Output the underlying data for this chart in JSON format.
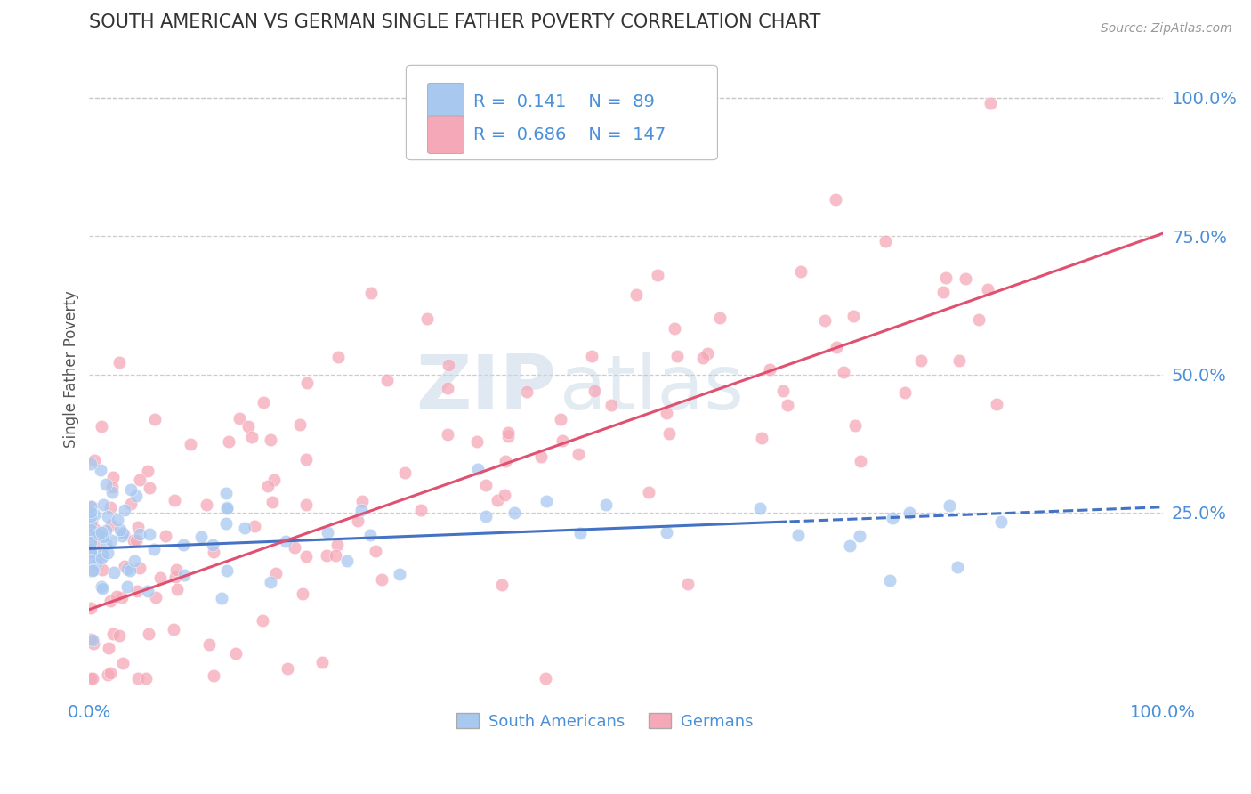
{
  "title": "SOUTH AMERICAN VS GERMAN SINGLE FATHER POVERTY CORRELATION CHART",
  "source": "Source: ZipAtlas.com",
  "ylabel": "Single Father Poverty",
  "xlim": [
    0,
    1
  ],
  "ylim": [
    -0.08,
    1.1
  ],
  "yticks": [
    0.25,
    0.5,
    0.75,
    1.0
  ],
  "ytick_labels": [
    "25.0%",
    "50.0%",
    "75.0%",
    "100.0%"
  ],
  "xtick_labels": [
    "0.0%",
    "100.0%"
  ],
  "blue_R": 0.141,
  "blue_N": 89,
  "pink_R": 0.686,
  "pink_N": 147,
  "blue_color": "#a8c8f0",
  "pink_color": "#f5a8b8",
  "blue_line_color": "#4472c4",
  "pink_line_color": "#e05070",
  "blue_line_intercept": 0.185,
  "blue_line_slope": 0.075,
  "pink_line_intercept": 0.075,
  "pink_line_slope": 0.68,
  "watermark_zip": "ZIP",
  "watermark_atlas": "atlas",
  "title_color": "#333333",
  "axis_color": "#4a90d9",
  "grid_color": "#c8c8c8",
  "legend_text_color": "#4a90d9"
}
